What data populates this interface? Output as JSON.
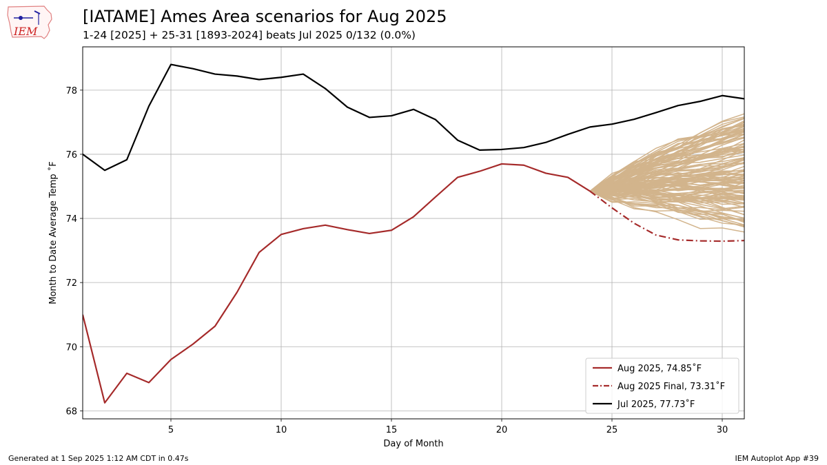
{
  "logo": {
    "text": "IEM"
  },
  "header": {
    "title": "[IATAME] Ames Area scenarios for Aug 2025",
    "subtitle": "1-24 [2025] + 25-31 [1893-2024] beats Jul 2025 0/132 (0.0%)"
  },
  "footer": {
    "generated": "Generated at 1 Sep 2025 1:12 AM CDT in 0.47s",
    "app": "IEM Autoplot App #39"
  },
  "chart_data": {
    "type": "line",
    "xlabel": "Day of Month",
    "ylabel": "Month to Date Average Temp ˚F",
    "xlim": [
      1,
      31
    ],
    "ylim": [
      67.75,
      79.35
    ],
    "xticks": [
      5,
      10,
      15,
      20,
      25,
      30
    ],
    "yticks": [
      68,
      70,
      72,
      74,
      76,
      78
    ],
    "grid": true,
    "legend_position": "lower-right",
    "scenario_color": "#d2b48c",
    "series": [
      {
        "name": "Aug 2025, 74.85˚F",
        "color": "#a52a2a",
        "style": "solid",
        "x": [
          1,
          2,
          3,
          4,
          5,
          6,
          7,
          8,
          9,
          10,
          11,
          12,
          13,
          14,
          15,
          16,
          17,
          18,
          19,
          20,
          21,
          22,
          23,
          24
        ],
        "y": [
          71.0,
          68.25,
          69.17,
          68.88,
          69.6,
          70.08,
          70.64,
          71.7,
          72.94,
          73.5,
          73.68,
          73.79,
          73.65,
          73.53,
          73.63,
          74.05,
          74.67,
          75.28,
          75.47,
          75.7,
          75.66,
          75.41,
          75.28,
          74.85
        ]
      },
      {
        "name": "Aug 2025 Final, 73.31˚F",
        "color": "#a52a2a",
        "style": "dashdot",
        "x": [
          24,
          25,
          26,
          27,
          28,
          29,
          30,
          31
        ],
        "y": [
          74.85,
          74.33,
          73.85,
          73.48,
          73.33,
          73.3,
          73.29,
          73.31
        ]
      },
      {
        "name": "Jul 2025, 77.73˚F",
        "color": "#000000",
        "style": "solid",
        "x": [
          1,
          2,
          3,
          4,
          5,
          6,
          7,
          8,
          9,
          10,
          11,
          12,
          13,
          14,
          15,
          16,
          17,
          18,
          19,
          20,
          21,
          22,
          23,
          24,
          25,
          26,
          27,
          28,
          29,
          30,
          31
        ],
        "y": [
          76.0,
          75.5,
          75.83,
          77.5,
          78.8,
          78.67,
          78.5,
          78.44,
          78.33,
          78.4,
          78.5,
          78.05,
          77.47,
          77.15,
          77.2,
          77.4,
          77.08,
          76.44,
          76.13,
          76.15,
          76.21,
          76.37,
          76.62,
          76.85,
          76.94,
          77.09,
          77.3,
          77.52,
          77.65,
          77.83,
          77.73
        ]
      }
    ]
  }
}
